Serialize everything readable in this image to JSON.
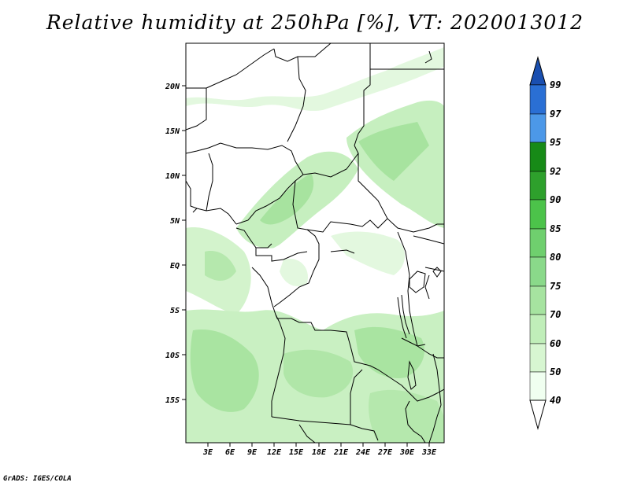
{
  "title": "Relative humidity at 250hPa [%], VT: 2020013012",
  "footer": "GrADS: IGES/COLA",
  "map": {
    "lon_range": [
      0,
      35
    ],
    "lat_range": [
      -20,
      25
    ],
    "variable": "Relative humidity",
    "level": "250hPa",
    "units": "%",
    "valid_time": "2020013012",
    "lat_ticks": [
      "20N",
      "15N",
      "10N",
      "5N",
      "EQ",
      "5S",
      "10S",
      "15S"
    ],
    "lon_ticks": [
      "3E",
      "6E",
      "9E",
      "12E",
      "15E",
      "18E",
      "21E",
      "24E",
      "27E",
      "30E",
      "33E"
    ]
  },
  "colorbar": {
    "labels": [
      "40",
      "50",
      "60",
      "70",
      "75",
      "80",
      "85",
      "90",
      "92",
      "95",
      "97",
      "99"
    ],
    "colors": [
      "#f0fff0",
      "#d7f6d1",
      "#c0eeb9",
      "#a6e3a0",
      "#8ad98a",
      "#6fcf6e",
      "#4cc34a",
      "#2ea02c",
      "#178a17",
      "#4c98e8",
      "#2a6fd4",
      "#1a4fb0"
    ],
    "extend": "both"
  }
}
